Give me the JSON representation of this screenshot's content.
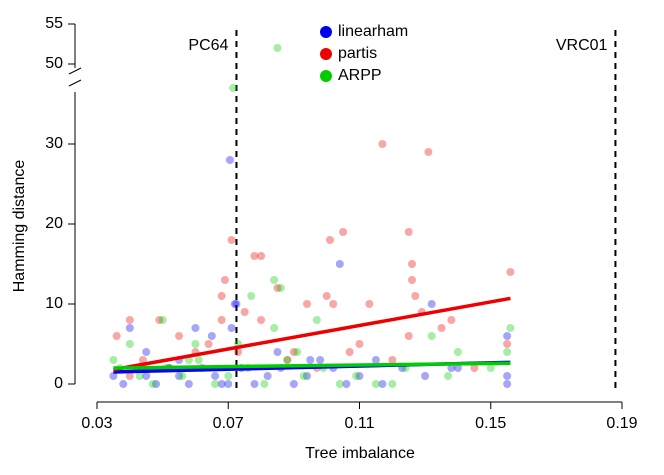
{
  "chart_data": {
    "type": "scatter",
    "xlabel": "Tree imbalance",
    "ylabel": "Hamming distance",
    "xlim": [
      0.03,
      0.19
    ],
    "xticks": [
      0.03,
      0.07,
      0.11,
      0.15,
      0.19
    ],
    "ylim": [
      0,
      55
    ],
    "y_break": [
      37.5,
      47.5
    ],
    "yticks": [
      0,
      10,
      20,
      30,
      50,
      55
    ],
    "legend": "top",
    "vlines": [
      {
        "x": 0.0725,
        "label": "PC64"
      },
      {
        "x": 0.188,
        "label": "VRC01"
      }
    ],
    "series": [
      {
        "name": "linearham",
        "color": "#0000ee",
        "x": [
          0.0705,
          0.0725,
          0.072,
          0.104,
          0.132,
          0.115,
          0.14,
          0.155,
          0.155,
          0.04,
          0.06,
          0.071,
          0.065,
          0.035,
          0.038,
          0.042,
          0.045,
          0.048,
          0.052,
          0.055,
          0.058,
          0.062,
          0.066,
          0.07,
          0.074,
          0.078,
          0.082,
          0.086,
          0.09,
          0.094,
          0.098,
          0.102,
          0.106,
          0.11,
          0.117,
          0.123,
          0.13,
          0.138,
          0.155,
          0.045,
          0.055,
          0.085,
          0.095,
          0.068
        ],
        "values": [
          28,
          10,
          10,
          15,
          10,
          3,
          2,
          6,
          1,
          7,
          7,
          7,
          6,
          1,
          0,
          2,
          1,
          0,
          2,
          1,
          0,
          2,
          1,
          0,
          2,
          0,
          1,
          2,
          0,
          1,
          3,
          2,
          0,
          1,
          0,
          2,
          1,
          2,
          0,
          4,
          3,
          4,
          3,
          0
        ]
      },
      {
        "name": "partis",
        "color": "#ee0000",
        "x": [
          0.117,
          0.131,
          0.071,
          0.078,
          0.08,
          0.101,
          0.105,
          0.125,
          0.126,
          0.085,
          0.126,
          0.127,
          0.069,
          0.068,
          0.1,
          0.094,
          0.102,
          0.113,
          0.129,
          0.075,
          0.156,
          0.138,
          0.155,
          0.068,
          0.08,
          0.049,
          0.04,
          0.036,
          0.055,
          0.06,
          0.09,
          0.11,
          0.135,
          0.125,
          0.044,
          0.052,
          0.064,
          0.073,
          0.088,
          0.097,
          0.107,
          0.12,
          0.145,
          0.04
        ],
        "values": [
          30,
          29,
          18,
          16,
          16,
          18,
          19,
          19,
          15,
          12,
          13,
          11,
          13,
          11,
          11,
          10,
          10,
          10,
          9,
          9,
          14,
          8,
          5,
          8,
          8,
          8,
          8,
          6,
          6,
          4,
          4,
          5,
          7,
          6,
          3,
          2,
          5,
          4,
          3,
          2,
          4,
          3,
          2,
          1
        ]
      },
      {
        "name": "ARPP",
        "color": "#00cc00",
        "x": [
          0.0715,
          0.085,
          0.084,
          0.086,
          0.077,
          0.05,
          0.06,
          0.084,
          0.097,
          0.14,
          0.156,
          0.155,
          0.132,
          0.115,
          0.12,
          0.04,
          0.035,
          0.037,
          0.043,
          0.047,
          0.051,
          0.056,
          0.061,
          0.066,
          0.07,
          0.076,
          0.081,
          0.088,
          0.093,
          0.099,
          0.104,
          0.109,
          0.124,
          0.137,
          0.15,
          0.058,
          0.073,
          0.091
        ],
        "values": [
          37,
          52,
          13,
          12,
          11,
          8,
          5,
          7,
          8,
          4,
          7,
          4,
          6,
          0,
          0,
          5,
          3,
          2,
          1,
          0,
          2,
          1,
          3,
          0,
          1,
          2,
          0,
          3,
          1,
          2,
          0,
          1,
          2,
          1,
          2,
          3,
          5,
          4
        ]
      }
    ],
    "trends": [
      {
        "x": [
          0.035,
          0.156
        ],
        "y": [
          1.5,
          2.7
        ],
        "color": "#0000ee"
      },
      {
        "x": [
          0.035,
          0.156
        ],
        "y": [
          1.8,
          10.7
        ],
        "color": "#ee0000"
      },
      {
        "x": [
          0.035,
          0.156
        ],
        "y": [
          2.0,
          2.6
        ],
        "color": "#00cc00"
      }
    ]
  }
}
